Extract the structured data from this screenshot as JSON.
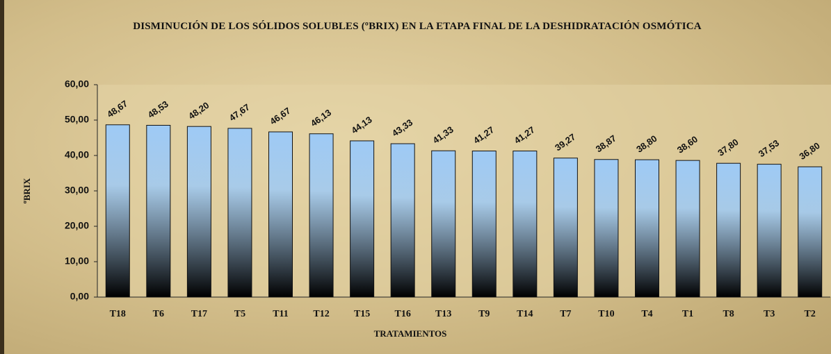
{
  "chart_data": {
    "type": "bar",
    "title": "DISMINUCIÓN DE LOS SÓLIDOS SOLUBLES (ºBRIX) EN LA ETAPA FINAL DE LA DESHIDRATACIÓN OSMÓTICA",
    "x_label": "TRATAMIENTOS",
    "y_label": "ºBRIX",
    "categories": [
      "T18",
      "T6",
      "T17",
      "T5",
      "T11",
      "T12",
      "T15",
      "T16",
      "T13",
      "T9",
      "T14",
      "T7",
      "T10",
      "T4",
      "T1",
      "T8",
      "T3",
      "T2"
    ],
    "values": [
      48.67,
      48.53,
      48.2,
      47.67,
      46.67,
      46.13,
      44.13,
      43.33,
      41.33,
      41.27,
      41.27,
      39.27,
      38.87,
      38.8,
      38.6,
      37.8,
      37.53,
      36.8
    ],
    "value_labels": [
      "48,67",
      "48,53",
      "48,20",
      "47,67",
      "46,67",
      "46,13",
      "44,13",
      "43,33",
      "41,33",
      "41,27",
      "41,27",
      "39,27",
      "38,87",
      "38,80",
      "38,60",
      "37,80",
      "37,53",
      "36,80"
    ],
    "color": "#9ecaf5",
    "ylim": [
      0,
      60
    ],
    "yticks": [
      {
        "value": 0,
        "label": "0,00"
      },
      {
        "value": 10,
        "label": "10,00"
      },
      {
        "value": 20,
        "label": "20,00"
      },
      {
        "value": 30,
        "label": "30,00"
      },
      {
        "value": 40,
        "label": "40,00"
      },
      {
        "value": 50,
        "label": "50,00"
      },
      {
        "value": 60,
        "label": "60,00"
      }
    ],
    "grid": false
  }
}
